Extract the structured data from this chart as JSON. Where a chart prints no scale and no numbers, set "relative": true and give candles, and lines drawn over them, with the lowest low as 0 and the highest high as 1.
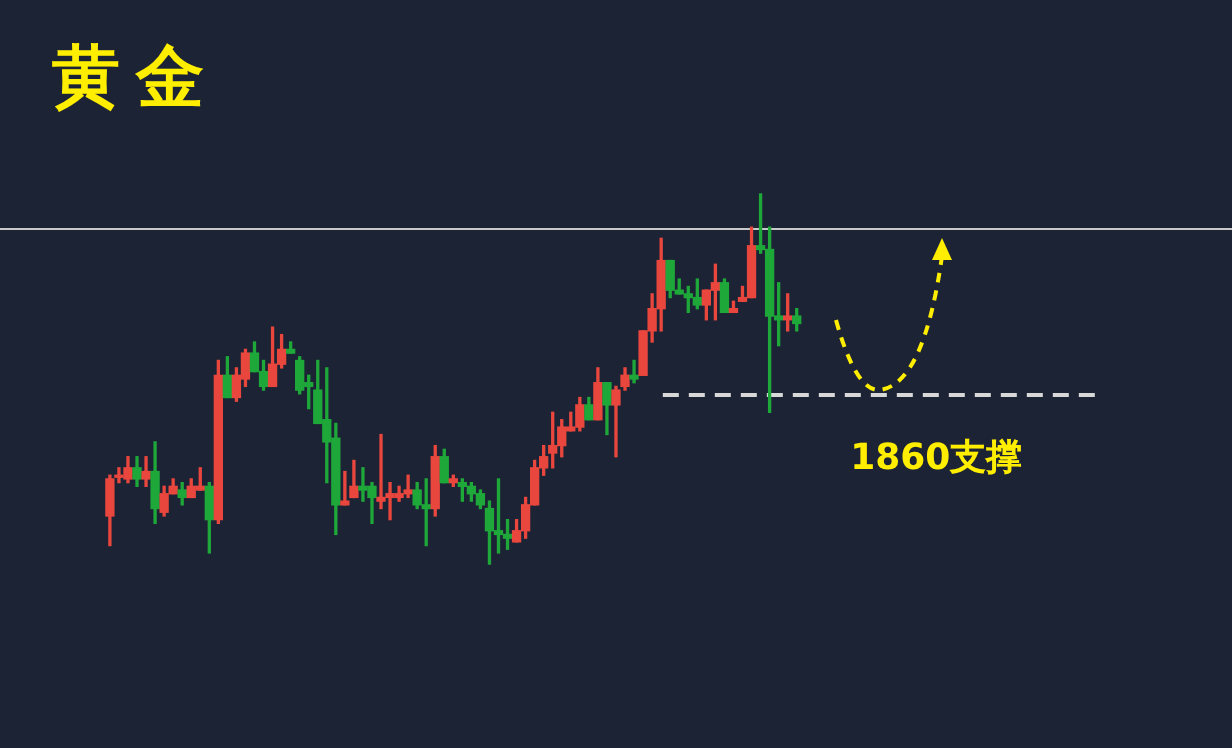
{
  "chart_data": {
    "type": "candlestick",
    "title": "黄金",
    "relative": true,
    "categories": [
      null,
      null,
      null,
      null,
      null,
      null,
      null,
      null,
      null,
      null,
      null,
      null,
      null,
      null,
      null,
      null,
      null,
      null,
      null,
      null,
      null,
      null,
      null,
      null,
      null,
      null,
      null,
      null,
      null,
      null,
      null,
      null,
      null,
      null,
      null,
      null,
      null,
      null,
      null,
      null,
      null,
      null,
      null,
      null,
      null,
      null,
      null,
      null,
      null,
      null,
      null,
      null,
      null,
      null,
      null,
      null,
      null,
      null,
      null,
      null,
      null,
      null,
      null,
      null,
      null,
      null,
      null,
      null,
      null,
      null,
      null,
      null,
      null,
      null,
      null,
      null,
      null
    ],
    "ohlc": [
      [
        0.13,
        0.24,
        0.05,
        0.23
      ],
      [
        0.24,
        0.26,
        0.22,
        0.24
      ],
      [
        0.23,
        0.29,
        0.22,
        0.26
      ],
      [
        0.26,
        0.29,
        0.21,
        0.23
      ],
      [
        0.23,
        0.29,
        0.21,
        0.25
      ],
      [
        0.25,
        0.33,
        0.11,
        0.15
      ],
      [
        0.14,
        0.21,
        0.13,
        0.19
      ],
      [
        0.19,
        0.23,
        0.19,
        0.21
      ],
      [
        0.2,
        0.22,
        0.16,
        0.18
      ],
      [
        0.18,
        0.23,
        0.18,
        0.21
      ],
      [
        0.2,
        0.26,
        0.2,
        0.21
      ],
      [
        0.21,
        0.22,
        0.03,
        0.12
      ],
      [
        0.12,
        0.55,
        0.11,
        0.51
      ],
      [
        0.51,
        0.56,
        0.45,
        0.45
      ],
      [
        0.45,
        0.53,
        0.44,
        0.51
      ],
      [
        0.5,
        0.58,
        0.48,
        0.57
      ],
      [
        0.57,
        0.6,
        0.52,
        0.52
      ],
      [
        0.52,
        0.55,
        0.47,
        0.48
      ],
      [
        0.48,
        0.64,
        0.48,
        0.54
      ],
      [
        0.54,
        0.62,
        0.53,
        0.58
      ],
      [
        0.58,
        0.6,
        0.57,
        0.57
      ],
      [
        0.55,
        0.56,
        0.46,
        0.47
      ],
      [
        0.49,
        0.51,
        0.42,
        0.48
      ],
      [
        0.47,
        0.55,
        0.38,
        0.38
      ],
      [
        0.39,
        0.53,
        0.22,
        0.33
      ],
      [
        0.34,
        0.38,
        0.08,
        0.16
      ],
      [
        0.16,
        0.25,
        0.16,
        0.17
      ],
      [
        0.18,
        0.28,
        0.18,
        0.21
      ],
      [
        0.21,
        0.26,
        0.17,
        0.2
      ],
      [
        0.21,
        0.22,
        0.11,
        0.18
      ],
      [
        0.17,
        0.35,
        0.15,
        0.18
      ],
      [
        0.18,
        0.22,
        0.12,
        0.19
      ],
      [
        0.18,
        0.21,
        0.17,
        0.19
      ],
      [
        0.19,
        0.24,
        0.18,
        0.2
      ],
      [
        0.2,
        0.22,
        0.15,
        0.16
      ],
      [
        0.16,
        0.23,
        0.05,
        0.15
      ],
      [
        0.15,
        0.32,
        0.13,
        0.29
      ],
      [
        0.29,
        0.31,
        0.22,
        0.22
      ],
      [
        0.22,
        0.24,
        0.21,
        0.23
      ],
      [
        0.22,
        0.23,
        0.17,
        0.21
      ],
      [
        0.21,
        0.22,
        0.17,
        0.19
      ],
      [
        0.19,
        0.2,
        0.15,
        0.16
      ],
      [
        0.15,
        0.17,
        0,
        0.09
      ],
      [
        0.09,
        0.23,
        0.03,
        0.08
      ],
      [
        0.08,
        0.12,
        0.04,
        0.07
      ],
      [
        0.06,
        0.12,
        0.06,
        0.09
      ],
      [
        0.09,
        0.18,
        0.07,
        0.16
      ],
      [
        0.16,
        0.28,
        0.16,
        0.26
      ],
      [
        0.26,
        0.32,
        0.24,
        0.29
      ],
      [
        0.3,
        0.41,
        0.26,
        0.32
      ],
      [
        0.32,
        0.39,
        0.29,
        0.37
      ],
      [
        0.36,
        0.41,
        0.36,
        0.37
      ],
      [
        0.37,
        0.45,
        0.36,
        0.43
      ],
      [
        0.43,
        0.45,
        0.39,
        0.39
      ],
      [
        0.39,
        0.53,
        0.39,
        0.49
      ],
      [
        0.49,
        0.49,
        0.35,
        0.43
      ],
      [
        0.43,
        0.48,
        0.29,
        0.47
      ],
      [
        0.48,
        0.53,
        0.47,
        0.51
      ],
      [
        0.51,
        0.55,
        0.49,
        0.5
      ],
      [
        0.51,
        0.63,
        0.51,
        0.63
      ],
      [
        0.63,
        0.73,
        0.6,
        0.69
      ],
      [
        0.69,
        0.88,
        0.63,
        0.82
      ],
      [
        0.82,
        0.82,
        0.72,
        0.74
      ],
      [
        0.74,
        0.77,
        0.73,
        0.73
      ],
      [
        0.73,
        0.75,
        0.68,
        0.72
      ],
      [
        0.72,
        0.77,
        0.69,
        0.7
      ],
      [
        0.7,
        0.74,
        0.66,
        0.74
      ],
      [
        0.74,
        0.81,
        0.66,
        0.76
      ],
      [
        0.76,
        0.77,
        0.68,
        0.68
      ],
      [
        0.68,
        0.71,
        0.68,
        0.69
      ],
      [
        0.71,
        0.75,
        0.71,
        0.72
      ],
      [
        0.72,
        0.91,
        0.72,
        0.86
      ],
      [
        0.86,
        1,
        0.84,
        0.85
      ],
      [
        0.85,
        0.91,
        0.41,
        0.67
      ],
      [
        0.67,
        0.76,
        0.59,
        0.66
      ],
      [
        0.66,
        0.73,
        0.63,
        0.67
      ],
      [
        0.67,
        0.69,
        0.63,
        0.65
      ]
    ],
    "ref_lines": [
      {
        "axis": "y",
        "value": 0.91,
        "color": "#c8c8c8",
        "line_style": "solid"
      },
      {
        "axis": "y",
        "value": 0.46,
        "color": "#d8d8d8",
        "line_style": "dashed"
      }
    ],
    "annotations": [
      {
        "text": "1860支撑",
        "y": 0.46
      }
    ]
  }
}
